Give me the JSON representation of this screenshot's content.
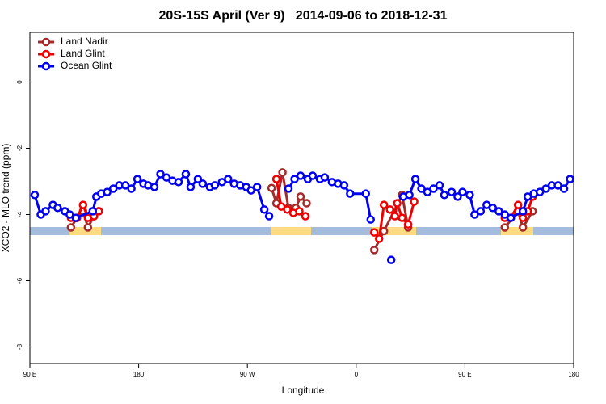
{
  "chart_data": {
    "type": "line",
    "title": "20S-15S April (Ver 9)   2014-09-06 to 2018-12-31",
    "xlabel": "Longitude",
    "ylabel": "XCO2 - MLO trend (ppm)",
    "xlim": [
      90,
      540
    ],
    "ylim": [
      -8.5,
      1.5
    ],
    "xticks": [
      {
        "value": 90,
        "label": "90 E"
      },
      180,
      {
        "value": 270,
        "label": "90 W"
      },
      {
        "value": 360,
        "label": "0"
      },
      {
        "value": 450,
        "label": "90 E"
      },
      {
        "value": 540,
        "label": "180"
      }
    ],
    "yticks": [
      0,
      -2,
      -4,
      -6,
      -8
    ],
    "legend": "top-left",
    "series": [
      {
        "name": "Land Nadir",
        "color": "#a52a2a",
        "x": [
          124,
          129,
          134,
          138,
          143,
          147,
          null,
          290,
          294,
          299,
          304,
          310,
          314,
          319,
          null,
          375,
          383,
          398,
          403,
          null,
          483,
          494,
          498,
          506
        ],
        "values": [
          -4.39,
          -4.1,
          -3.9,
          -4.39,
          -4.05,
          -3.9,
          null,
          -3.2,
          -3.66,
          -2.73,
          -3.8,
          -3.8,
          -3.46,
          -3.66,
          null,
          -5.07,
          -4.5,
          -3.41,
          -4.39,
          null,
          -4.39,
          -3.9,
          -4.39,
          -3.9
        ]
      },
      {
        "name": "Land Glint",
        "color": "#ee0000",
        "x": [
          124,
          129,
          134,
          138,
          143,
          147,
          null,
          294,
          298,
          303,
          308,
          313,
          318,
          null,
          375,
          379,
          383,
          388,
          392,
          394,
          398,
          403,
          408,
          null,
          483,
          488,
          494,
          498,
          502,
          506
        ],
        "values": [
          -4.1,
          -4.1,
          -3.71,
          -4.1,
          -4.05,
          -3.9,
          null,
          -2.93,
          -3.76,
          -3.85,
          -3.95,
          -3.9,
          -4.05,
          null,
          -4.54,
          -4.73,
          -3.71,
          -3.85,
          -4.05,
          -3.66,
          -4.1,
          -4.3,
          -3.61,
          null,
          -4.1,
          -4.1,
          -3.71,
          -4.1,
          -3.9,
          -3.46
        ]
      },
      {
        "name": "Ocean Glint",
        "color": "#0000ee",
        "x": [
          94,
          99,
          103,
          109,
          113,
          119,
          123,
          128,
          142,
          145,
          149,
          154,
          159,
          164,
          169,
          174,
          179,
          184,
          188,
          193,
          198,
          203,
          208,
          213,
          219,
          223,
          229,
          233,
          239,
          243,
          249,
          254,
          259,
          264,
          269,
          273,
          278,
          284,
          288,
          null,
          304,
          309,
          314,
          320,
          324,
          330,
          334,
          340,
          345,
          350,
          355,
          368,
          372,
          null,
          389,
          null,
          399,
          404,
          409,
          414,
          419,
          424,
          429,
          433,
          439,
          444,
          448,
          454,
          458,
          463,
          468,
          473,
          478,
          483,
          488,
          498,
          502,
          507,
          512,
          517,
          522,
          527,
          532,
          537
        ],
        "values": [
          -3.41,
          -4.0,
          -3.9,
          -3.71,
          -3.8,
          -3.9,
          -4.0,
          -4.1,
          -3.9,
          -3.46,
          -3.37,
          -3.32,
          -3.22,
          -3.12,
          -3.12,
          -3.22,
          -2.93,
          -3.07,
          -3.12,
          -3.17,
          -2.78,
          -2.88,
          -2.98,
          -3.02,
          -2.78,
          -3.17,
          -2.93,
          -3.07,
          -3.17,
          -3.12,
          -3.02,
          -2.93,
          -3.07,
          -3.12,
          -3.17,
          -3.27,
          -3.17,
          -3.85,
          -4.05,
          null,
          -3.22,
          -2.93,
          -2.83,
          -2.93,
          -2.83,
          -2.93,
          -2.88,
          -3.02,
          -3.07,
          -3.12,
          -3.37,
          -3.37,
          -4.15,
          null,
          -5.37,
          null,
          -3.46,
          -3.41,
          -2.93,
          -3.22,
          -3.32,
          -3.22,
          -3.12,
          -3.41,
          -3.32,
          -3.46,
          -3.32,
          -3.41,
          -4.0,
          -3.9,
          -3.71,
          -3.8,
          -3.9,
          -4.0,
          -4.1,
          -3.9,
          -3.46,
          -3.37,
          -3.32,
          -3.22,
          -3.12,
          -3.12,
          -3.22,
          -2.93
        ]
      }
    ]
  }
}
